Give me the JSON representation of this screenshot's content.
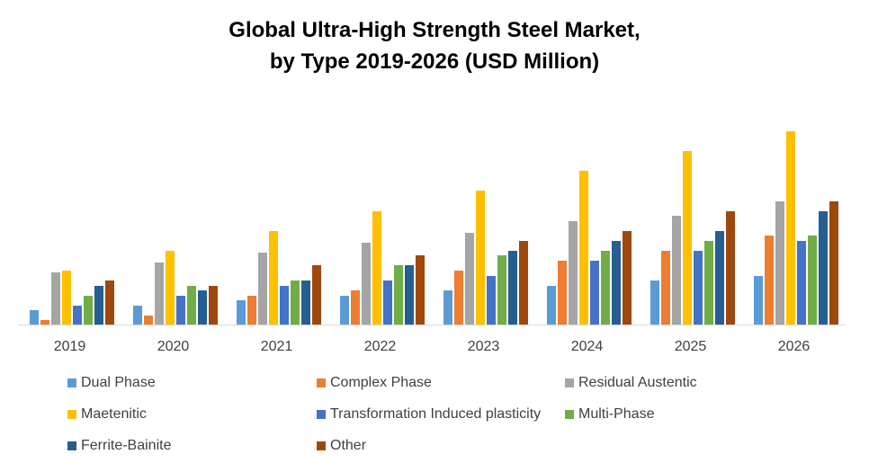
{
  "chart_data": {
    "type": "bar",
    "title_lines": [
      "Global Ultra-High Strength Steel Market,",
      "by Type 2019-2026 (USD Million)"
    ],
    "xlabel": "",
    "ylabel": "",
    "categories": [
      "2019",
      "2020",
      "2021",
      "2022",
      "2023",
      "2024",
      "2025",
      "2026"
    ],
    "ylim": [
      0,
      230
    ],
    "grid": false,
    "legend_position": "bottom",
    "series": [
      {
        "name": "Dual Phase",
        "color": "#5B9BD5",
        "values": [
          16,
          21,
          27,
          32,
          38,
          43,
          49,
          54
        ]
      },
      {
        "name": "Complex Phase",
        "color": "#ED7D31",
        "values": [
          5,
          10,
          32,
          38,
          60,
          71,
          82,
          99
        ]
      },
      {
        "name": "Residual Austentic",
        "color": "#A5A5A5",
        "values": [
          58,
          69,
          80,
          91,
          102,
          115,
          121,
          137
        ]
      },
      {
        "name": "Maetenitic",
        "color": "#FFC000",
        "values": [
          60,
          82,
          104,
          126,
          149,
          171,
          193,
          215
        ]
      },
      {
        "name": "Transformation Induced plasticity",
        "color": "#4472C4",
        "values": [
          21,
          32,
          43,
          49,
          54,
          71,
          82,
          93
        ]
      },
      {
        "name": "Multi-Phase",
        "color": "#70AD47",
        "values": [
          32,
          43,
          49,
          66,
          77,
          82,
          93,
          99
        ]
      },
      {
        "name": "Ferrite-Bainite",
        "color": "#255E91",
        "values": [
          43,
          38,
          49,
          66,
          82,
          93,
          104,
          126
        ]
      },
      {
        "name": "Other",
        "color": "#9E480E",
        "values": [
          49,
          43,
          66,
          77,
          93,
          104,
          126,
          137
        ]
      }
    ]
  }
}
